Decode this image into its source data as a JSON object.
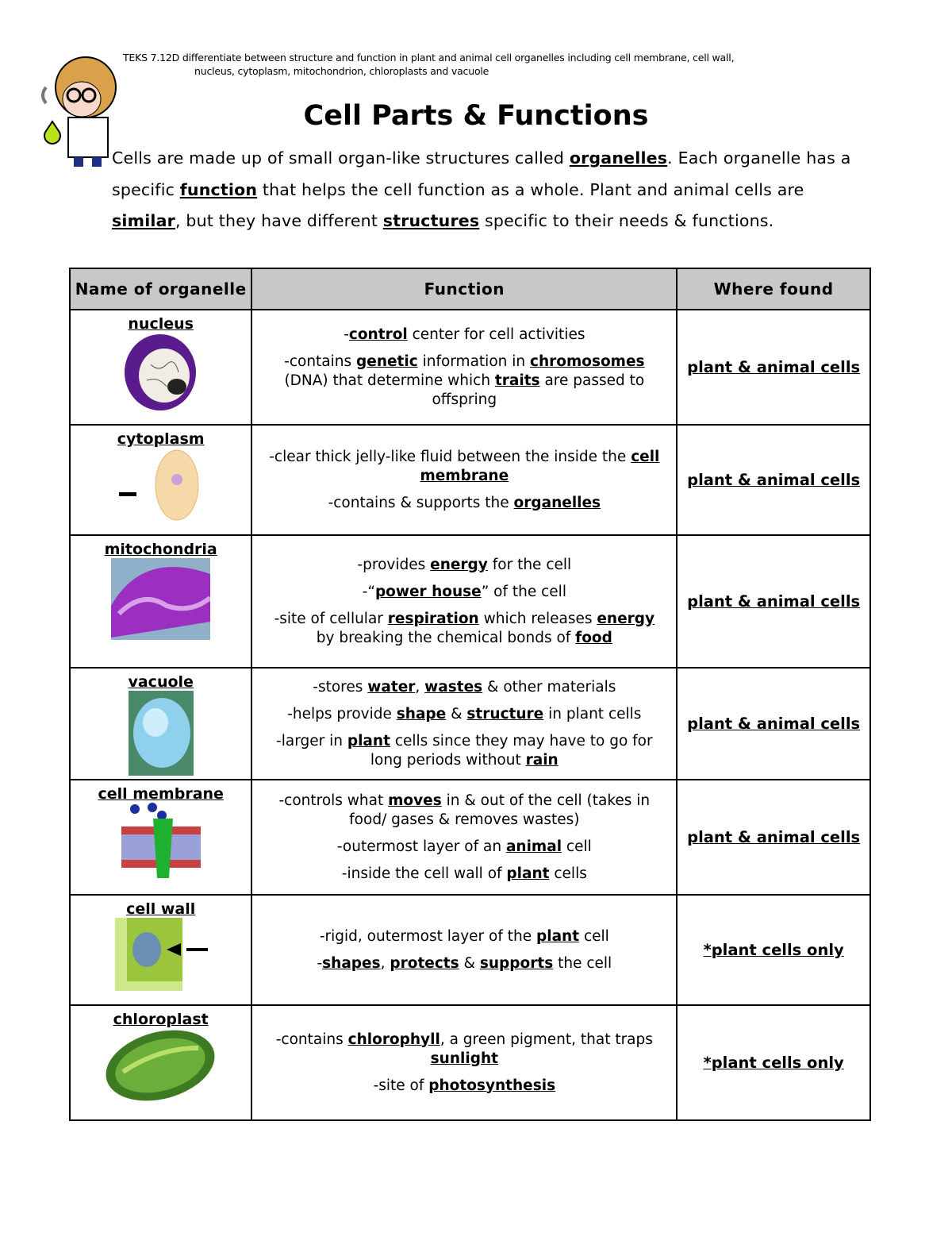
{
  "teks": {
    "line1": "TEKS 7.12D differentiate between structure and function in plant and animal cell organelles including cell membrane, cell wall,",
    "line2": "nucleus, cytoplasm, mitochondrion, chloroplasts and vacuole"
  },
  "title": "Cell Parts & Functions",
  "intro": [
    {
      "t": "Cells are made up of small organ-like structures called "
    },
    {
      "t": "organelles",
      "b": true
    },
    {
      "t": ". Each organelle has a specific "
    },
    {
      "t": "function",
      "b": true
    },
    {
      "t": " that helps the cell function as a whole.  Plant and animal cells are "
    },
    {
      "t": "similar",
      "b": true
    },
    {
      "t": ", but they have different "
    },
    {
      "t": "structures",
      "b": true
    },
    {
      "t": " specific to their needs & functions."
    }
  ],
  "table": {
    "headers": [
      "Name of organelle",
      "Function",
      "Where found"
    ],
    "rows": [
      {
        "name": "nucleus",
        "image": "nucleus-image",
        "where": "plant & animal cells",
        "function": [
          [
            {
              "t": "-"
            },
            {
              "t": "control",
              "b": true
            },
            {
              "t": " center for cell activities"
            }
          ],
          [
            {
              "t": "-contains "
            },
            {
              "t": "genetic",
              "b": true
            },
            {
              "t": " information in "
            },
            {
              "t": "chromosomes",
              "b": true
            },
            {
              "t": " (DNA) that determine which "
            },
            {
              "t": "traits",
              "b": true
            },
            {
              "t": " are passed to offspring"
            }
          ]
        ]
      },
      {
        "name": "cytoplasm",
        "image": "cytoplasm-image",
        "where": "plant & animal cells",
        "function": [
          [
            {
              "t": "-clear thick jelly-like fluid between the inside the "
            },
            {
              "t": "cell",
              "b": true
            },
            {
              "t": " "
            },
            {
              "t": "membrane",
              "b": true
            }
          ],
          [
            {
              "t": "-contains & supports the "
            },
            {
              "t": "organelles",
              "b": true
            }
          ]
        ]
      },
      {
        "name": "mitochondria",
        "image": "mitochondria-image",
        "where": "plant & animal cells",
        "function": [
          [
            {
              "t": "-provides "
            },
            {
              "t": "energy",
              "b": true
            },
            {
              "t": " for the cell"
            }
          ],
          [
            {
              "t": "-“"
            },
            {
              "t": "power house",
              "b": true
            },
            {
              "t": "” of the cell"
            }
          ],
          [
            {
              "t": "-site of cellular "
            },
            {
              "t": "respiration",
              "b": true
            },
            {
              "t": " which releases "
            },
            {
              "t": "energy",
              "b": true
            },
            {
              "t": " by breaking the chemical bonds of "
            },
            {
              "t": "food",
              "b": true
            }
          ]
        ]
      },
      {
        "name": "vacuole",
        "image": "vacuole-image",
        "where": "plant & animal cells",
        "function": [
          [
            {
              "t": "-stores "
            },
            {
              "t": "water",
              "b": true
            },
            {
              "t": ", "
            },
            {
              "t": "wastes",
              "b": true
            },
            {
              "t": " & other materials"
            }
          ],
          [
            {
              "t": "-helps provide "
            },
            {
              "t": "shape",
              "b": true
            },
            {
              "t": " & "
            },
            {
              "t": "structure",
              "b": true
            },
            {
              "t": " in plant cells"
            }
          ],
          [
            {
              "t": "-larger in "
            },
            {
              "t": "plant",
              "b": true
            },
            {
              "t": " cells since they may have to go for long periods without "
            },
            {
              "t": "rain",
              "b": true
            }
          ]
        ]
      },
      {
        "name": "cell membrane",
        "image": "cell-membrane-image",
        "where": "plant & animal cells",
        "function": [
          [
            {
              "t": "-controls what "
            },
            {
              "t": "moves",
              "b": true
            },
            {
              "t": " in & out of the cell (takes in food/ gases & removes wastes)"
            }
          ],
          [
            {
              "t": "-outermost layer of an "
            },
            {
              "t": "animal",
              "b": true
            },
            {
              "t": " cell"
            }
          ],
          [
            {
              "t": "-inside the cell wall of "
            },
            {
              "t": "plant",
              "b": true
            },
            {
              "t": " cells"
            }
          ]
        ]
      },
      {
        "name": "cell wall",
        "image": "cell-wall-image",
        "where": "*plant cells only",
        "function": [
          [
            {
              "t": "-rigid, outermost layer of the "
            },
            {
              "t": "plant",
              "b": true
            },
            {
              "t": " cell"
            }
          ],
          [
            {
              "t": "-"
            },
            {
              "t": "shapes",
              "b": true
            },
            {
              "t": ", "
            },
            {
              "t": "protects",
              "b": true
            },
            {
              "t": " & "
            },
            {
              "t": "supports",
              "b": true
            },
            {
              "t": " the cell"
            }
          ]
        ]
      },
      {
        "name": "chloroplast",
        "image": "chloroplast-image",
        "where": "*plant cells only",
        "function": [
          [
            {
              "t": "-contains "
            },
            {
              "t": "chlorophyll",
              "b": true
            },
            {
              "t": ", a green pigment, that traps "
            },
            {
              "t": "sunlight",
              "b": true
            }
          ],
          [
            {
              "t": "-site of "
            },
            {
              "t": "photosynthesis",
              "b": true
            }
          ]
        ]
      }
    ]
  }
}
